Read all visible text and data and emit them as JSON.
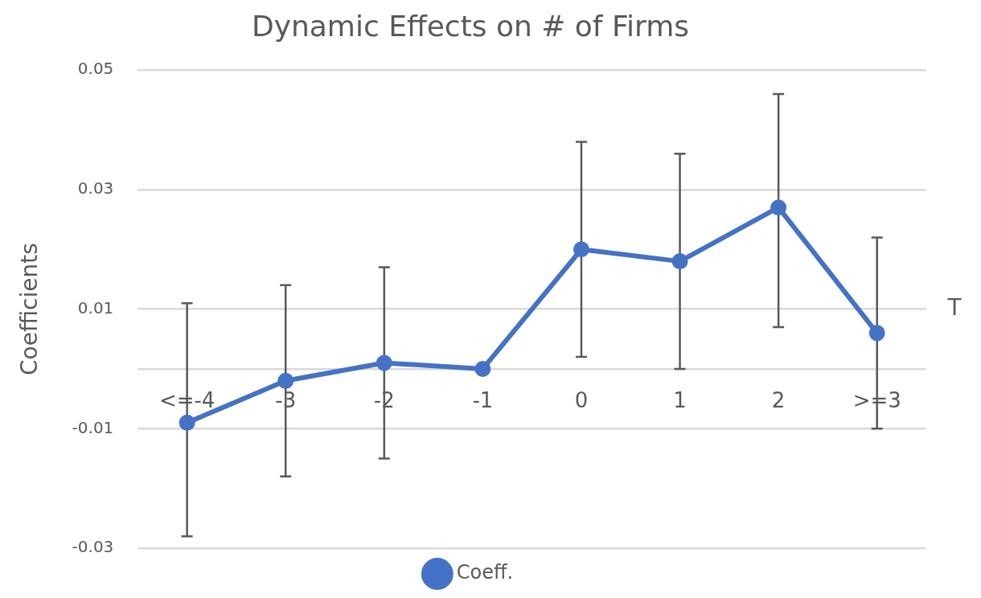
{
  "chart_data": {
    "type": "line",
    "title": "Dynamic Effects on # of Firms",
    "xlabel": "T",
    "ylabel": "Coefficients",
    "categories": [
      "<=-4",
      "-3",
      "-2",
      "-1",
      "0",
      "1",
      "2",
      ">=3"
    ],
    "series": [
      {
        "name": "Coeff.",
        "color": "#4472c4",
        "values": [
          -0.009,
          -0.002,
          0.001,
          0,
          0.02,
          0.018,
          0.027,
          0.006
        ],
        "errors": [
          [
            -0.028,
            0.011
          ],
          [
            -0.018,
            0.014
          ],
          [
            -0.015,
            0.017
          ],
          null,
          [
            0.002,
            0.038
          ],
          [
            0.0,
            0.036
          ],
          [
            0.007,
            0.046
          ],
          [
            -0.01,
            0.022
          ]
        ]
      }
    ],
    "ylim": [
      -0.03,
      0.05
    ],
    "yticks": [
      -0.03,
      -0.01,
      {
        "value": 0,
        "label": null
      },
      0.01,
      0.03,
      0.05
    ],
    "grid": "y",
    "legend": "bottom",
    "marker": "circle",
    "line_style": "solid"
  }
}
